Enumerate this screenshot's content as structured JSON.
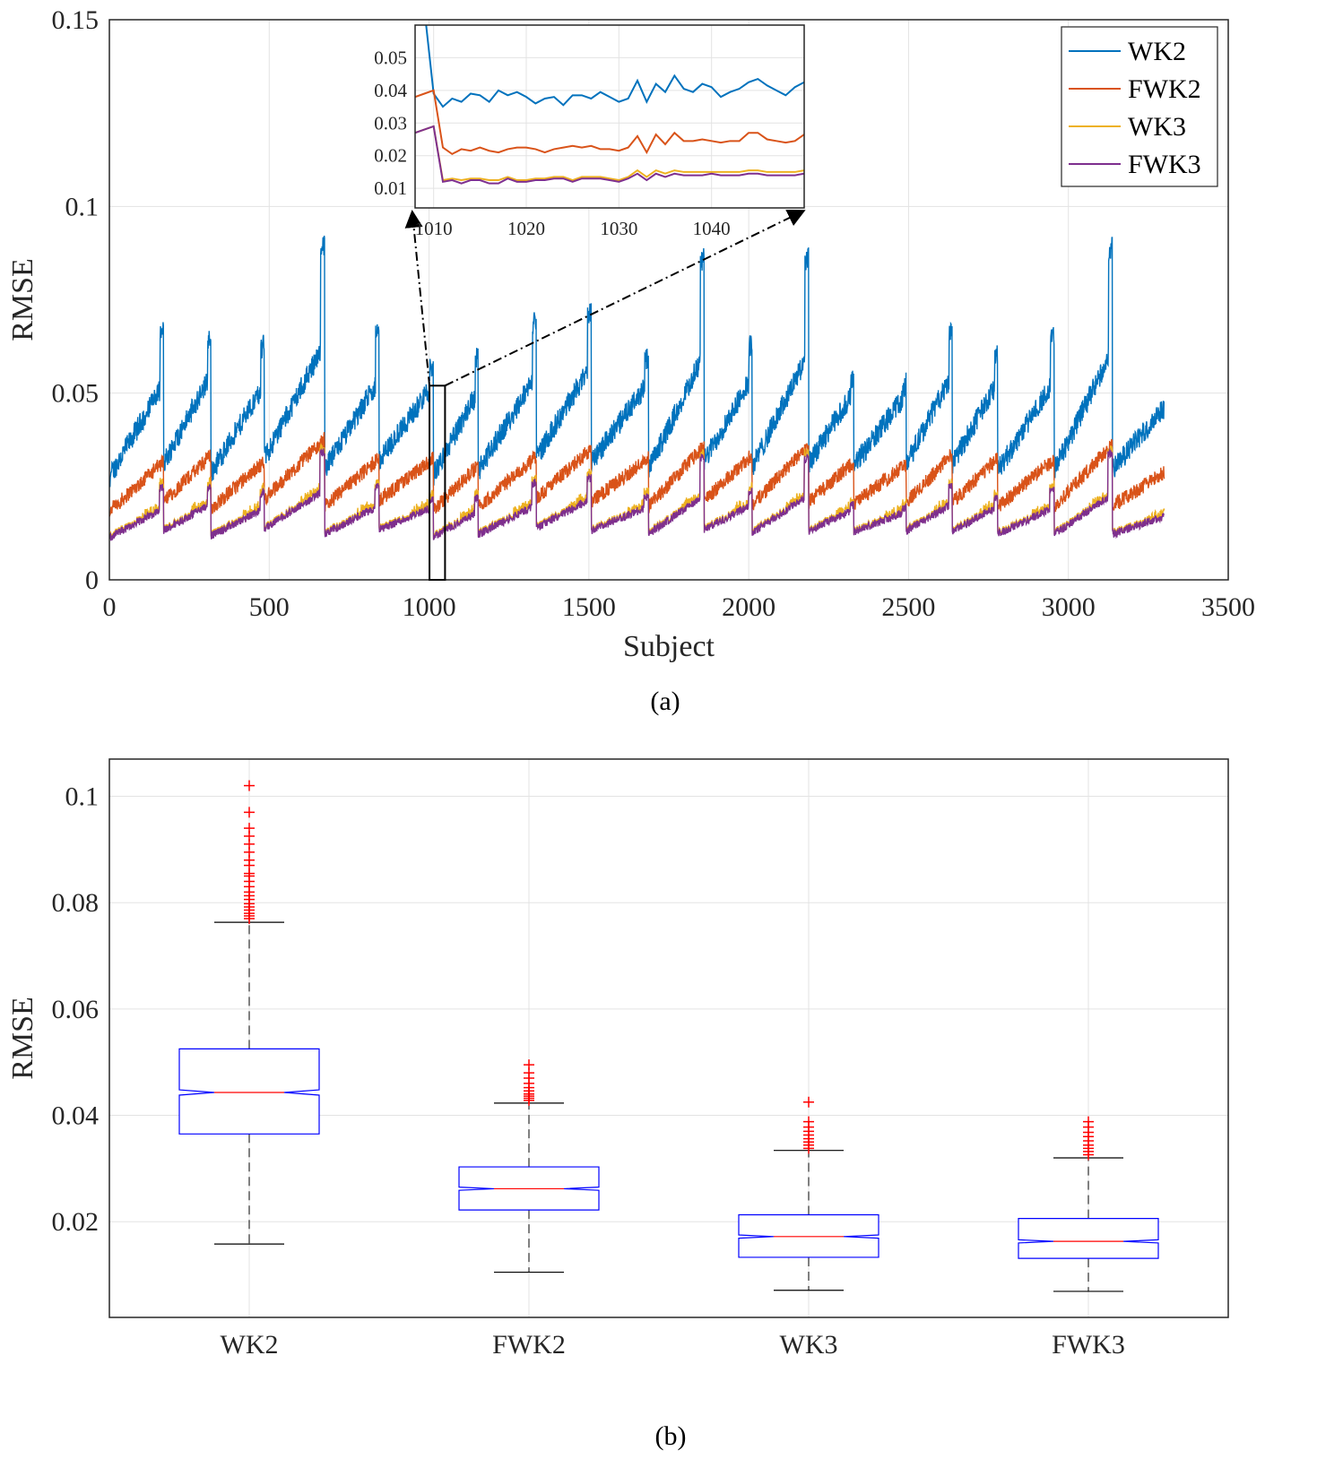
{
  "panel_a": {
    "caption": "(a)",
    "chart_data": {
      "type": "line",
      "xlabel": "Subject",
      "ylabel": "RMSE",
      "xlim": [
        0,
        3500
      ],
      "ylim": [
        0,
        0.15
      ],
      "xticks": [
        0,
        500,
        1000,
        1500,
        2000,
        2500,
        3000,
        3500
      ],
      "xtick_labels": [
        "0",
        "500",
        "1000",
        "1500",
        "2000",
        "2500",
        "3000",
        "3500"
      ],
      "yticks": [
        0,
        0.05,
        0.1,
        0.15
      ],
      "ytick_labels": [
        "0",
        "0.05",
        "0.1",
        "0.15"
      ],
      "grid": true,
      "legend_position": "top-right",
      "n_subjects": 3300,
      "series": [
        {
          "name": "WK2",
          "color": "#0072BD",
          "approx_range": [
            0.015,
            0.102
          ],
          "typical": [
            0.028,
            0.06
          ]
        },
        {
          "name": "FWK2",
          "color": "#D95319",
          "approx_range": [
            0.012,
            0.048
          ],
          "typical": [
            0.018,
            0.035
          ]
        },
        {
          "name": "WK3",
          "color": "#EDB120",
          "approx_range": [
            0.008,
            0.043
          ],
          "typical": [
            0.012,
            0.025
          ]
        },
        {
          "name": "FWK3",
          "color": "#7E2F8E",
          "approx_range": [
            0.008,
            0.039
          ],
          "typical": [
            0.011,
            0.022
          ]
        }
      ],
      "highlight_box": {
        "x_range": [
          1007,
          1050
        ],
        "y_range": [
          0,
          0.052
        ]
      }
    },
    "inset": {
      "chart_data": {
        "type": "line",
        "xlim": [
          1008,
          1050
        ],
        "ylim": [
          0.004,
          0.06
        ],
        "xticks": [
          1010,
          1020,
          1030,
          1040
        ],
        "xtick_labels": [
          "1010",
          "1020",
          "1030",
          "1040"
        ],
        "yticks": [
          0.01,
          0.02,
          0.03,
          0.04,
          0.05
        ],
        "ytick_labels": [
          "0.01",
          "0.02",
          "0.03",
          "0.04",
          "0.05"
        ],
        "x": [
          1008,
          1009,
          1010,
          1011,
          1012,
          1013,
          1014,
          1015,
          1016,
          1017,
          1018,
          1019,
          1020,
          1021,
          1022,
          1023,
          1024,
          1025,
          1026,
          1027,
          1028,
          1029,
          1030,
          1031,
          1032,
          1033,
          1034,
          1035,
          1036,
          1037,
          1038,
          1039,
          1040,
          1041,
          1042,
          1043,
          1044,
          1045,
          1046,
          1047,
          1048,
          1049,
          1050
        ],
        "series": [
          {
            "name": "WK2",
            "color": "#0072BD",
            "values": [
              0.068,
              0.065,
              0.039,
              0.035,
              0.0375,
              0.0365,
              0.039,
              0.0385,
              0.0365,
              0.04,
              0.0385,
              0.0395,
              0.038,
              0.036,
              0.0375,
              0.038,
              0.0355,
              0.0385,
              0.0385,
              0.0375,
              0.0395,
              0.038,
              0.0365,
              0.0375,
              0.043,
              0.0365,
              0.042,
              0.0395,
              0.0445,
              0.0405,
              0.0395,
              0.042,
              0.041,
              0.038,
              0.0395,
              0.0405,
              0.0425,
              0.0435,
              0.0415,
              0.04,
              0.0385,
              0.041,
              0.0425
            ]
          },
          {
            "name": "FWK2",
            "color": "#D95319",
            "values": [
              0.038,
              0.039,
              0.04,
              0.0225,
              0.0205,
              0.022,
              0.0215,
              0.0225,
              0.0215,
              0.021,
              0.022,
              0.0225,
              0.0225,
              0.022,
              0.021,
              0.022,
              0.0225,
              0.023,
              0.0225,
              0.023,
              0.022,
              0.022,
              0.0215,
              0.0225,
              0.026,
              0.021,
              0.0265,
              0.0235,
              0.027,
              0.0245,
              0.0245,
              0.025,
              0.0245,
              0.024,
              0.0245,
              0.0245,
              0.027,
              0.027,
              0.025,
              0.0245,
              0.024,
              0.0245,
              0.0265
            ]
          },
          {
            "name": "WK3",
            "color": "#EDB120",
            "values": [
              0.027,
              0.028,
              0.029,
              0.0125,
              0.013,
              0.0125,
              0.013,
              0.013,
              0.0125,
              0.0125,
              0.0135,
              0.0125,
              0.0125,
              0.013,
              0.013,
              0.0135,
              0.0135,
              0.0125,
              0.0135,
              0.0135,
              0.0135,
              0.013,
              0.0125,
              0.0135,
              0.0155,
              0.0135,
              0.0155,
              0.0145,
              0.0155,
              0.015,
              0.015,
              0.015,
              0.015,
              0.015,
              0.015,
              0.015,
              0.0155,
              0.0155,
              0.015,
              0.015,
              0.015,
              0.015,
              0.0155
            ]
          },
          {
            "name": "FWK3",
            "color": "#7E2F8E",
            "values": [
              0.027,
              0.028,
              0.029,
              0.012,
              0.0125,
              0.0115,
              0.0125,
              0.0125,
              0.0115,
              0.0115,
              0.013,
              0.012,
              0.012,
              0.0125,
              0.0125,
              0.013,
              0.013,
              0.012,
              0.013,
              0.013,
              0.013,
              0.0125,
              0.012,
              0.013,
              0.0145,
              0.0125,
              0.0145,
              0.0135,
              0.0145,
              0.014,
              0.014,
              0.014,
              0.0145,
              0.014,
              0.014,
              0.014,
              0.0145,
              0.0145,
              0.014,
              0.014,
              0.014,
              0.014,
              0.0145
            ]
          }
        ]
      }
    }
  },
  "panel_b": {
    "caption": "(b)",
    "chart_data": {
      "type": "box",
      "ylabel": "RMSE",
      "categories": [
        "WK2",
        "FWK2",
        "WK3",
        "FWK3"
      ],
      "ylim": [
        0.002,
        0.107
      ],
      "yticks": [
        0.02,
        0.04,
        0.06,
        0.08,
        0.1
      ],
      "ytick_labels": [
        "0.02",
        "0.04",
        "0.06",
        "0.08",
        "0.1"
      ],
      "grid": true,
      "notched": true,
      "box_color": "#0000FF",
      "median_color": "#FF0000",
      "outlier_color": "#FF0000",
      "boxes": [
        {
          "name": "WK2",
          "whisker_low": 0.0158,
          "q1": 0.0365,
          "median": 0.0443,
          "q3": 0.0525,
          "whisker_high": 0.0763,
          "notch_low": 0.0438,
          "notch_high": 0.0448,
          "outliers": [
            0.102,
            0.097,
            0.094,
            0.0925,
            0.091,
            0.0895,
            0.088,
            0.087,
            0.0855,
            0.085,
            0.084,
            0.083,
            0.082,
            0.0813,
            0.0806,
            0.0798,
            0.0792,
            0.0786,
            0.078,
            0.0775,
            0.077
          ]
        },
        {
          "name": "FWK2",
          "whisker_low": 0.0105,
          "q1": 0.0222,
          "median": 0.0262,
          "q3": 0.0303,
          "whisker_high": 0.0423,
          "notch_low": 0.0259,
          "notch_high": 0.0265,
          "outliers": [
            0.0495,
            0.048,
            0.047,
            0.046,
            0.0452,
            0.0446,
            0.044,
            0.0436,
            0.0432,
            0.0428
          ]
        },
        {
          "name": "WK3",
          "whisker_low": 0.0071,
          "q1": 0.0133,
          "median": 0.0172,
          "q3": 0.0213,
          "whisker_high": 0.0334,
          "notch_low": 0.0169,
          "notch_high": 0.0175,
          "outliers": [
            0.0425,
            0.0388,
            0.0378,
            0.037,
            0.0363,
            0.0356,
            0.035,
            0.0344,
            0.0338
          ]
        },
        {
          "name": "FWK3",
          "whisker_low": 0.0069,
          "q1": 0.0131,
          "median": 0.0163,
          "q3": 0.0206,
          "whisker_high": 0.032,
          "notch_low": 0.016,
          "notch_high": 0.0166,
          "outliers": [
            0.0388,
            0.0378,
            0.0368,
            0.036,
            0.0352,
            0.0344,
            0.0338,
            0.0332,
            0.0326
          ]
        }
      ]
    }
  }
}
